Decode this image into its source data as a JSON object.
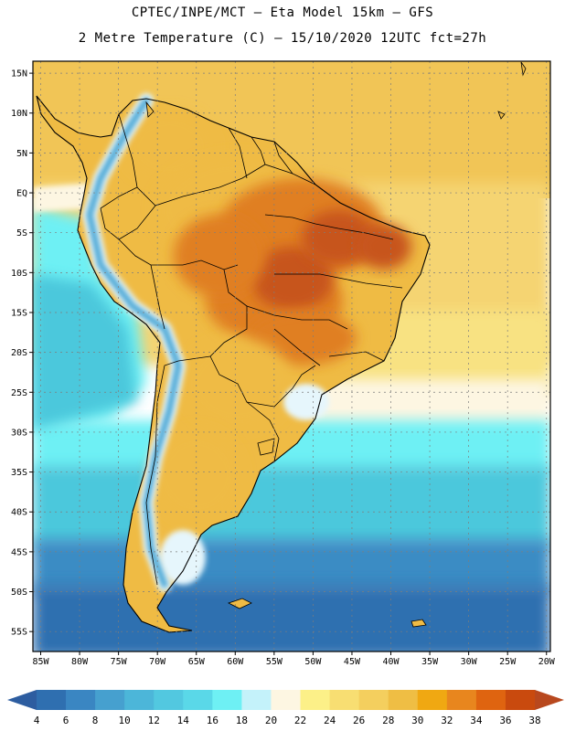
{
  "header": {
    "line1": "CPTEC/INPE/MCT –  Eta Model 15km – GFS",
    "line2": "2 Metre Temperature (C) – 15/10/2020 12UTC fct=27h"
  },
  "map": {
    "lon_range": [
      -86,
      -19.5
    ],
    "lat_range": [
      -57.5,
      16.5
    ],
    "lat_ticks": [
      {
        "value": 15,
        "label": "15N"
      },
      {
        "value": 10,
        "label": "10N"
      },
      {
        "value": 5,
        "label": "5N"
      },
      {
        "value": 0,
        "label": "EQ"
      },
      {
        "value": -5,
        "label": "5S"
      },
      {
        "value": -10,
        "label": "10S"
      },
      {
        "value": -15,
        "label": "15S"
      },
      {
        "value": -20,
        "label": "20S"
      },
      {
        "value": -25,
        "label": "25S"
      },
      {
        "value": -30,
        "label": "30S"
      },
      {
        "value": -35,
        "label": "35S"
      },
      {
        "value": -40,
        "label": "40S"
      },
      {
        "value": -45,
        "label": "45S"
      },
      {
        "value": -50,
        "label": "50S"
      },
      {
        "value": -55,
        "label": "55S"
      }
    ],
    "lon_ticks": [
      {
        "value": -85,
        "label": "85W"
      },
      {
        "value": -80,
        "label": "80W"
      },
      {
        "value": -75,
        "label": "75W"
      },
      {
        "value": -70,
        "label": "70W"
      },
      {
        "value": -65,
        "label": "65W"
      },
      {
        "value": -60,
        "label": "60W"
      },
      {
        "value": -55,
        "label": "55W"
      },
      {
        "value": -50,
        "label": "50W"
      },
      {
        "value": -45,
        "label": "45W"
      },
      {
        "value": -40,
        "label": "40W"
      },
      {
        "value": -35,
        "label": "35W"
      },
      {
        "value": -30,
        "label": "30W"
      },
      {
        "value": -25,
        "label": "25W"
      },
      {
        "value": -20,
        "label": "20W"
      }
    ]
  },
  "colorbar": {
    "labels": [
      "4",
      "6",
      "8",
      "10",
      "12",
      "14",
      "16",
      "18",
      "20",
      "22",
      "24",
      "26",
      "28",
      "30",
      "32",
      "34",
      "36",
      "38"
    ],
    "colors": [
      "#2f6fb0",
      "#3a86c2",
      "#46a0cf",
      "#4cb6d9",
      "#52c8e0",
      "#5ad8e8",
      "#6ef0f4",
      "#c4f2fa",
      "#fdf6e2",
      "#fcf088",
      "#f8de72",
      "#f4cf5e",
      "#efbe44",
      "#f0a812",
      "#e8861e",
      "#df6410",
      "#c94a0e"
    ],
    "low_color": "#2d5da0",
    "high_color": "#b8481e"
  },
  "colors": {
    "ocean_north": "#f1c556",
    "ocean_warm": "#f5d472",
    "ocean_mid": "#f8e282",
    "ocean_pale": "#fdf6e2",
    "ocean_cyan": "#6ef0f4",
    "ocean_teal": "#4cc8dc",
    "ocean_blue": "#3a8cc4",
    "ocean_deep": "#2f70b0",
    "land_hot": "#e07f22",
    "land_hotter": "#c7541a",
    "land_warm": "#efbb44",
    "andes_cold": "#4aa6d4",
    "andes_snow": "#e6f6fc"
  }
}
